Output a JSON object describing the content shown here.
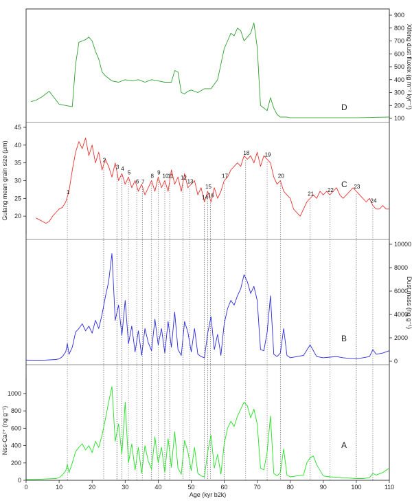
{
  "chart_data": {
    "type": "line",
    "x_axis": {
      "label": "Age (kyr b2k)",
      "range": [
        0,
        110
      ],
      "ticks": [
        0,
        10,
        20,
        30,
        40,
        50,
        60,
        70,
        80,
        90,
        100,
        110
      ]
    },
    "panels": [
      {
        "id": "D",
        "letter": "D",
        "color": "#2e9e2e",
        "axis_side": "right",
        "ylabel": "Xifeng dust fluxex (g m⁻² kyr⁻¹)",
        "ylim": [
          100,
          900
        ],
        "yticks": [
          100,
          200,
          300,
          400,
          500,
          600,
          700,
          800,
          900
        ],
        "x": [
          1.5,
          3,
          5,
          7,
          8.5,
          10,
          12,
          14,
          15,
          16,
          17,
          18,
          19,
          20,
          21,
          22,
          23,
          24,
          25,
          26,
          28,
          30,
          32,
          34,
          36,
          38,
          40,
          42,
          44,
          45,
          46,
          47,
          48,
          49,
          50,
          52,
          54,
          56,
          58,
          59,
          60,
          61,
          62,
          63,
          64,
          65,
          66,
          67,
          68,
          69,
          70,
          71,
          72,
          73,
          74,
          75,
          76,
          77,
          78,
          79,
          80,
          82,
          85,
          90,
          95,
          100,
          105,
          110
        ],
        "y": [
          230,
          240,
          270,
          310,
          260,
          210,
          200,
          190,
          520,
          690,
          700,
          710,
          730,
          700,
          620,
          560,
          460,
          430,
          410,
          390,
          380,
          400,
          390,
          400,
          380,
          400,
          390,
          380,
          380,
          470,
          460,
          300,
          290,
          310,
          320,
          300,
          330,
          330,
          400,
          520,
          640,
          700,
          760,
          740,
          800,
          780,
          700,
          730,
          760,
          840,
          650,
          200,
          180,
          160,
          260,
          180,
          130,
          110,
          110,
          110,
          105,
          105,
          105,
          105,
          105,
          105,
          108,
          110
        ]
      },
      {
        "id": "C",
        "letter": "C",
        "color": "#e8322e",
        "axis_side": "left",
        "ylabel": "Gulang mean grain size (μm)",
        "ylim": [
          15,
          45
        ],
        "yticks": [
          20,
          25,
          30,
          35,
          40,
          45
        ],
        "x": [
          3,
          4,
          5,
          6,
          7,
          8,
          9,
          10,
          11,
          12,
          13,
          14,
          15,
          16,
          17,
          18,
          19,
          20,
          21,
          22,
          23,
          24,
          25,
          26,
          27,
          28,
          29,
          30,
          31,
          32,
          33,
          34,
          35,
          36,
          37,
          38,
          39,
          40,
          41,
          42,
          43,
          44,
          45,
          46,
          47,
          48,
          49,
          50,
          51,
          52,
          53,
          54,
          55,
          56,
          57,
          58,
          59,
          60,
          61,
          62,
          63,
          64,
          65,
          66,
          67,
          68,
          69,
          70,
          71,
          72,
          73,
          74,
          75,
          76,
          77,
          78,
          79,
          80,
          81,
          82,
          83,
          84,
          85,
          86,
          87,
          88,
          89,
          90,
          91,
          92,
          93,
          94,
          95,
          96,
          97,
          98,
          99,
          100,
          101,
          102,
          103,
          104,
          105,
          106,
          107,
          108,
          109,
          110
        ],
        "y": [
          19.5,
          19,
          18.5,
          18,
          18.5,
          20,
          21,
          22,
          22.5,
          24,
          27,
          33,
          38,
          41,
          39,
          42,
          37,
          40,
          35,
          38,
          33,
          36,
          34,
          31,
          35,
          30,
          32,
          29,
          31,
          28,
          30,
          27,
          29,
          26,
          28,
          30,
          27,
          31,
          28,
          30,
          27,
          33,
          29,
          31,
          27,
          32,
          28,
          29,
          30,
          26,
          28,
          24,
          27,
          24,
          28,
          25,
          27,
          30,
          31,
          33,
          34,
          35,
          34,
          37,
          36,
          37,
          35,
          38,
          34,
          37,
          36,
          35,
          31,
          29,
          30,
          27,
          26,
          25,
          22,
          21,
          20,
          22,
          24,
          25,
          26,
          25,
          27,
          26,
          27,
          26,
          27,
          28,
          26,
          25,
          26,
          27,
          28,
          27,
          26,
          25,
          24,
          25,
          23,
          22,
          22,
          23,
          22,
          22
        ]
      },
      {
        "id": "B",
        "letter": "B",
        "color": "#2a2adc",
        "axis_side": "right",
        "ylabel": "Dust mass (ng g⁻¹)",
        "ylim": [
          0,
          10000
        ],
        "yticks": [
          0,
          2000,
          4000,
          6000,
          8000,
          10000
        ],
        "x": [
          0,
          3,
          6,
          9,
          10,
          11,
          12,
          12.5,
          13,
          14,
          15,
          16,
          17,
          18,
          19,
          20,
          21,
          22,
          23,
          24,
          25,
          26,
          27,
          28,
          29,
          30,
          31,
          32,
          33,
          34,
          35,
          36,
          37,
          38,
          39,
          40,
          41,
          42,
          43,
          44,
          45,
          46,
          47,
          48,
          49,
          50,
          51,
          52,
          53,
          54,
          55,
          56,
          57,
          58,
          59,
          60,
          61,
          62,
          63,
          64,
          65,
          66,
          67,
          68,
          69,
          70,
          71,
          72,
          73,
          74,
          75,
          76,
          77,
          78,
          79,
          80,
          82,
          84,
          86,
          88,
          90,
          92,
          94,
          96,
          98,
          100,
          102,
          104,
          105,
          106,
          108,
          110
        ],
        "y": [
          100,
          80,
          100,
          150,
          200,
          400,
          800,
          1500,
          600,
          1200,
          2500,
          2800,
          3200,
          2600,
          3000,
          2400,
          3500,
          2800,
          4000,
          5500,
          6800,
          9200,
          3500,
          4800,
          2200,
          5200,
          1500,
          3000,
          800,
          2600,
          500,
          2800,
          1600,
          900,
          3600,
          1400,
          2800,
          700,
          3400,
          1200,
          4200,
          1000,
          500,
          3400,
          2500,
          800,
          2800,
          600,
          400,
          300,
          2400,
          3800,
          1000,
          2300,
          500,
          3200,
          4500,
          5200,
          4800,
          5600,
          6200,
          7400,
          6800,
          5800,
          6400,
          5200,
          1000,
          900,
          2500,
          5600,
          600,
          400,
          700,
          2800,
          500,
          300,
          400,
          500,
          1400,
          400,
          300,
          350,
          400,
          300,
          250,
          200,
          300,
          400,
          1000,
          600,
          700,
          900
        ]
      },
      {
        "id": "A",
        "letter": "A",
        "color": "#22e022",
        "axis_side": "left",
        "ylabel": "Nss-Ca²⁺ (ng g⁻¹)",
        "ylim": [
          0,
          1150
        ],
        "yticks": [
          0,
          200,
          400,
          600,
          800,
          1000
        ],
        "x": [
          0,
          3,
          6,
          9,
          10,
          11,
          12,
          12.5,
          13,
          14,
          15,
          16,
          17,
          18,
          19,
          20,
          21,
          22,
          23,
          24,
          25,
          26,
          27,
          28,
          29,
          30,
          31,
          32,
          33,
          34,
          35,
          36,
          37,
          38,
          39,
          40,
          41,
          42,
          43,
          44,
          45,
          46,
          47,
          48,
          49,
          50,
          51,
          52,
          53,
          54,
          55,
          56,
          57,
          58,
          59,
          60,
          61,
          62,
          63,
          64,
          65,
          66,
          67,
          68,
          69,
          70,
          71,
          72,
          73,
          74,
          75,
          76,
          77,
          78,
          79,
          80,
          82,
          84,
          85,
          86,
          87,
          88,
          90,
          92,
          94,
          96,
          98,
          100,
          102,
          104,
          105,
          106,
          108,
          110
        ],
        "y": [
          10,
          10,
          15,
          20,
          30,
          60,
          110,
          180,
          90,
          200,
          330,
          380,
          420,
          350,
          400,
          320,
          450,
          380,
          520,
          700,
          900,
          1080,
          450,
          650,
          300,
          900,
          200,
          420,
          120,
          380,
          80,
          400,
          220,
          130,
          500,
          200,
          380,
          90,
          480,
          150,
          560,
          140,
          70,
          460,
          330,
          110,
          380,
          80,
          50,
          40,
          330,
          520,
          140,
          300,
          70,
          420,
          600,
          680,
          620,
          740,
          820,
          900,
          860,
          720,
          820,
          650,
          140,
          120,
          330,
          740,
          80,
          50,
          90,
          360,
          60,
          40,
          50,
          60,
          200,
          260,
          280,
          180,
          50,
          40,
          35,
          30,
          25,
          20,
          20,
          30,
          80,
          60,
          90,
          140
        ]
      }
    ],
    "events": [
      {
        "label": "1",
        "age": 12.5
      },
      {
        "label": "2",
        "age": 23.5
      },
      {
        "label": "3",
        "age": 27.5
      },
      {
        "label": "4",
        "age": 29.0
      },
      {
        "label": "5",
        "age": 31.0
      },
      {
        "label": "6",
        "age": 33.5
      },
      {
        "label": "7",
        "age": 35.2
      },
      {
        "label": "8",
        "age": 38.0
      },
      {
        "label": "9",
        "age": 40.0
      },
      {
        "label": "10",
        "age": 42.0
      },
      {
        "label": "11",
        "age": 43.5
      },
      {
        "label": "12",
        "age": 47.5
      },
      {
        "label": "13",
        "age": 49.5
      },
      {
        "label": "14",
        "age": 54.0
      },
      {
        "label": "15",
        "age": 55.0
      },
      {
        "label": "16",
        "age": 55.8
      },
      {
        "label": "17",
        "age": 60.0
      },
      {
        "label": "18",
        "age": 66.5
      },
      {
        "label": "19",
        "age": 73.0
      },
      {
        "label": "20",
        "age": 77.0
      },
      {
        "label": "21",
        "age": 86.0
      },
      {
        "label": "22",
        "age": 92.0
      },
      {
        "label": "23",
        "age": 100.0
      },
      {
        "label": "24",
        "age": 105.0
      }
    ]
  }
}
